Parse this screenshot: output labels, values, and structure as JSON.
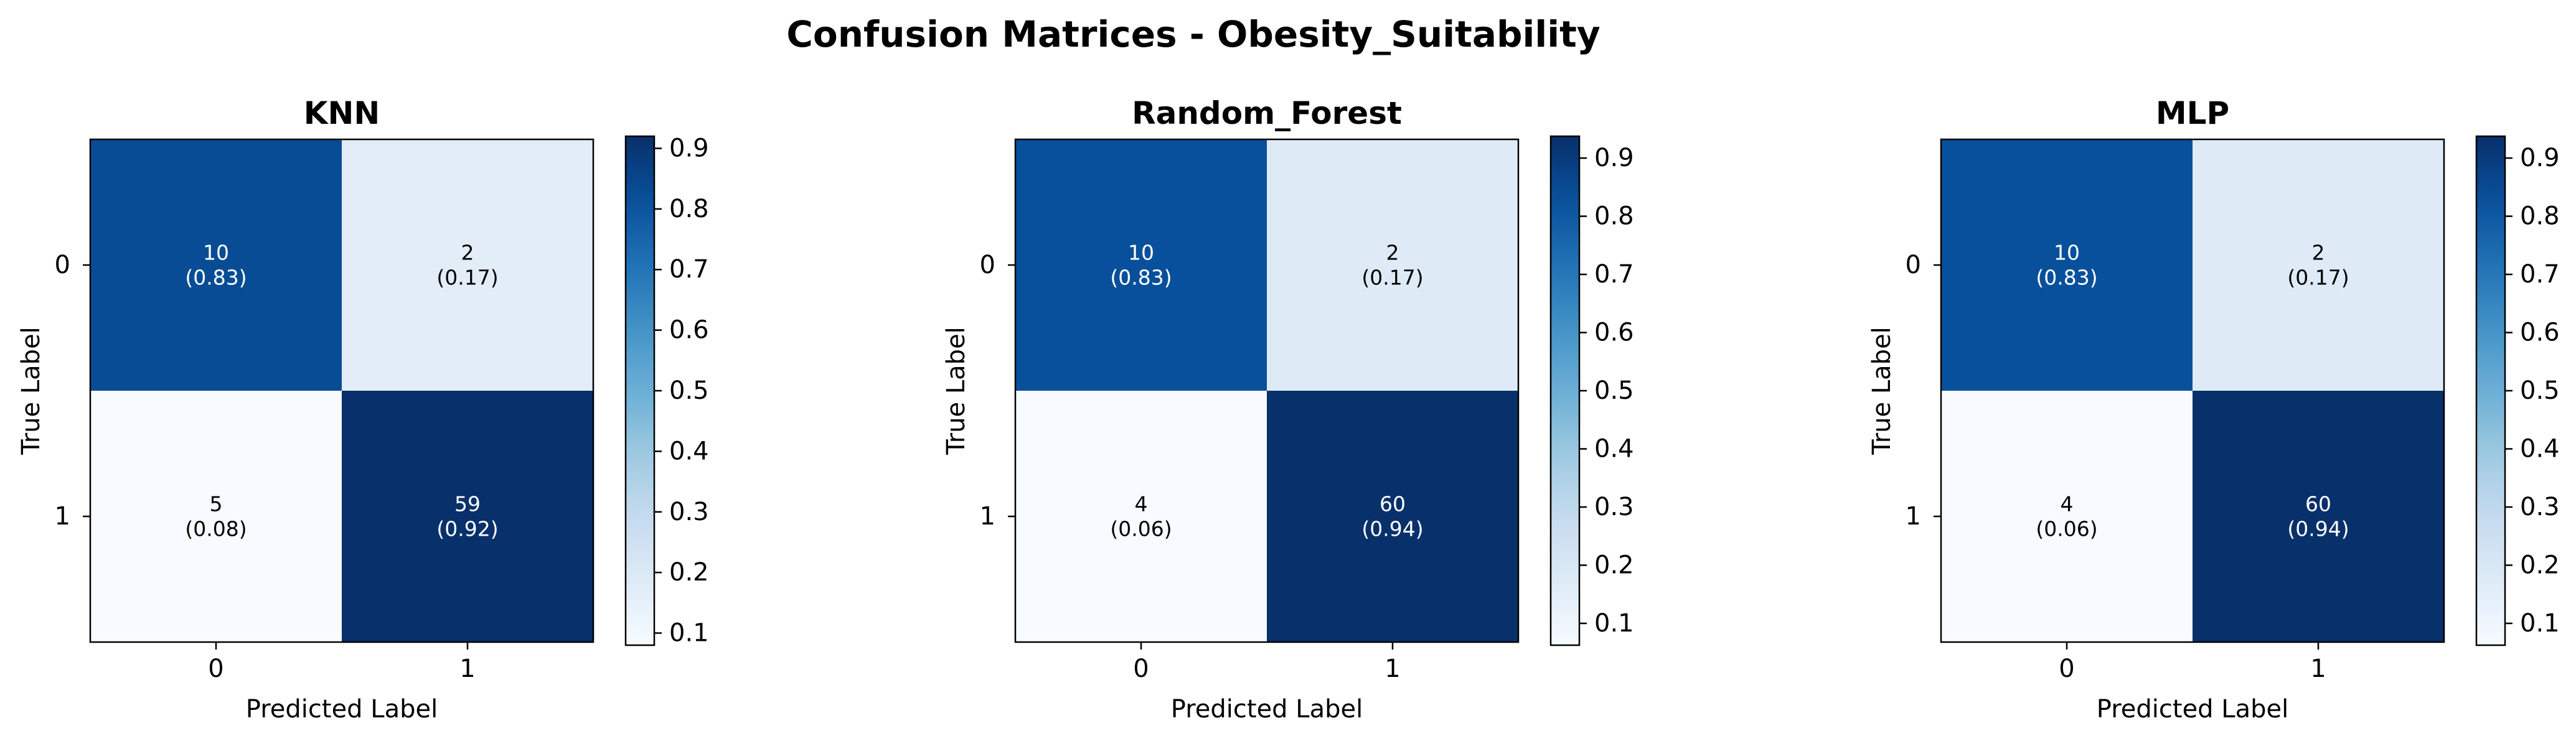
{
  "figure": {
    "title": "Confusion Matrices - Obesity_Suitability"
  },
  "colormap": {
    "name": "Blues",
    "stops": [
      "#f7fbff",
      "#deebf7",
      "#c6dbef",
      "#9ecae1",
      "#6baed6",
      "#4292c6",
      "#2171b5",
      "#08519c",
      "#08306b"
    ]
  },
  "chart_data": [
    {
      "type": "heatmap",
      "title": "KNN",
      "xlabel": "Predicted Label",
      "ylabel": "True Label",
      "x_categories": [
        "0",
        "1"
      ],
      "y_categories": [
        "0",
        "1"
      ],
      "counts": [
        [
          10,
          2
        ],
        [
          5,
          59
        ]
      ],
      "proportions": [
        [
          0.83,
          0.17
        ],
        [
          0.08,
          0.92
        ]
      ],
      "cell_labels": [
        [
          "10\n(0.83)",
          "2\n(0.17)"
        ],
        [
          "5\n(0.08)",
          "59\n(0.92)"
        ]
      ],
      "colorbar": {
        "range": [
          0.08,
          0.92
        ],
        "ticks": [
          "0.1",
          "0.2",
          "0.3",
          "0.4",
          "0.5",
          "0.6",
          "0.7",
          "0.8",
          "0.9"
        ]
      }
    },
    {
      "type": "heatmap",
      "title": "Random_Forest",
      "xlabel": "Predicted Label",
      "ylabel": "True Label",
      "x_categories": [
        "0",
        "1"
      ],
      "y_categories": [
        "0",
        "1"
      ],
      "counts": [
        [
          10,
          2
        ],
        [
          4,
          60
        ]
      ],
      "proportions": [
        [
          0.83,
          0.17
        ],
        [
          0.06,
          0.94
        ]
      ],
      "cell_labels": [
        [
          "10\n(0.83)",
          "2\n(0.17)"
        ],
        [
          "4\n(0.06)",
          "60\n(0.94)"
        ]
      ],
      "colorbar": {
        "range": [
          0.0625,
          0.9375
        ],
        "ticks": [
          "0.1",
          "0.2",
          "0.3",
          "0.4",
          "0.5",
          "0.6",
          "0.7",
          "0.8",
          "0.9"
        ]
      }
    },
    {
      "type": "heatmap",
      "title": "MLP",
      "xlabel": "Predicted Label",
      "ylabel": "True Label",
      "x_categories": [
        "0",
        "1"
      ],
      "y_categories": [
        "0",
        "1"
      ],
      "counts": [
        [
          10,
          2
        ],
        [
          4,
          60
        ]
      ],
      "proportions": [
        [
          0.83,
          0.17
        ],
        [
          0.06,
          0.94
        ]
      ],
      "cell_labels": [
        [
          "10\n(0.83)",
          "2\n(0.17)"
        ],
        [
          "4\n(0.06)",
          "60\n(0.94)"
        ]
      ],
      "colorbar": {
        "range": [
          0.0625,
          0.9375
        ],
        "ticks": [
          "0.1",
          "0.2",
          "0.3",
          "0.4",
          "0.5",
          "0.6",
          "0.7",
          "0.8",
          "0.9"
        ]
      }
    }
  ]
}
